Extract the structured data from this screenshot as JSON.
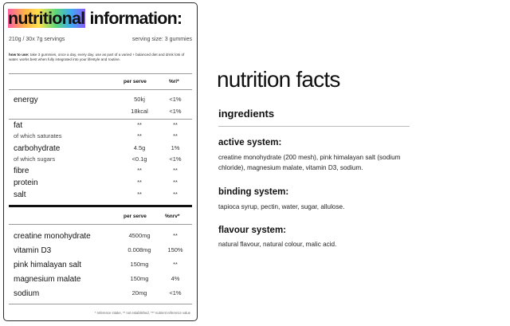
{
  "label": {
    "title_highlight": "nutritional",
    "title_rest": " information:",
    "servings": "210g / 30x 7g servings",
    "serving_size": "serving size: 3 gummies",
    "how_to_use_label": "how to use:",
    "how_to_use_text": " take 3 gummies, once a day, every day. use as part of a varied + balanced diet and drink lots of water. works best when fully integrated into your lifestyle and routine.",
    "table1": {
      "col1": "per serve",
      "col2": "%ri*",
      "energy": {
        "name": "energy",
        "kj": "50kj",
        "kcal": "18kcal",
        "ri1": "<1%",
        "ri2": "<1%"
      },
      "fat": {
        "name": "fat",
        "v": "**",
        "ri": "**"
      },
      "saturates": {
        "name": "of which saturates",
        "v": "**",
        "ri": "**"
      },
      "carbohydrate": {
        "name": "carbohydrate",
        "v": "4.5g",
        "ri": "1%"
      },
      "sugars": {
        "name": "of which sugars",
        "v": "<0.1g",
        "ri": "<1%"
      },
      "fibre": {
        "name": "fibre",
        "v": "**",
        "ri": "**"
      },
      "protein": {
        "name": "protein",
        "v": "**",
        "ri": "**"
      },
      "salt": {
        "name": "salt",
        "v": "**",
        "ri": "**"
      }
    },
    "table2": {
      "col1": "per serve",
      "col2": "%nrv*",
      "rows": [
        {
          "name": "creatine monohydrate",
          "v": "4500mg",
          "nrv": "**"
        },
        {
          "name": "vitamin D3",
          "v": "0.008mg",
          "nrv": "150%"
        },
        {
          "name": "pink himalayan salt",
          "v": "150mg",
          "nrv": "**"
        },
        {
          "name": "magnesium malate",
          "v": "150mg",
          "nrv": "4%"
        },
        {
          "name": "sodium",
          "v": "20mg",
          "nrv": "<1%"
        }
      ]
    },
    "footnote": "* reference intake, ** not established, *** nutrient reference value"
  },
  "facts": {
    "title": "nutrition facts",
    "ingredients_title": "ingredients",
    "active_title": "active system:",
    "active_text": "creatine monohydrate (200 mesh), pink himalayan salt (sodium chloride), magnesium malate, vitamin D3, sodium.",
    "binding_title": "binding system:",
    "binding_text": "tapioca syrup, pectin, water, sugar, allulose.",
    "flavour_title": "flavour system:",
    "flavour_text": "natural flavour, natural colour, malic acid."
  }
}
